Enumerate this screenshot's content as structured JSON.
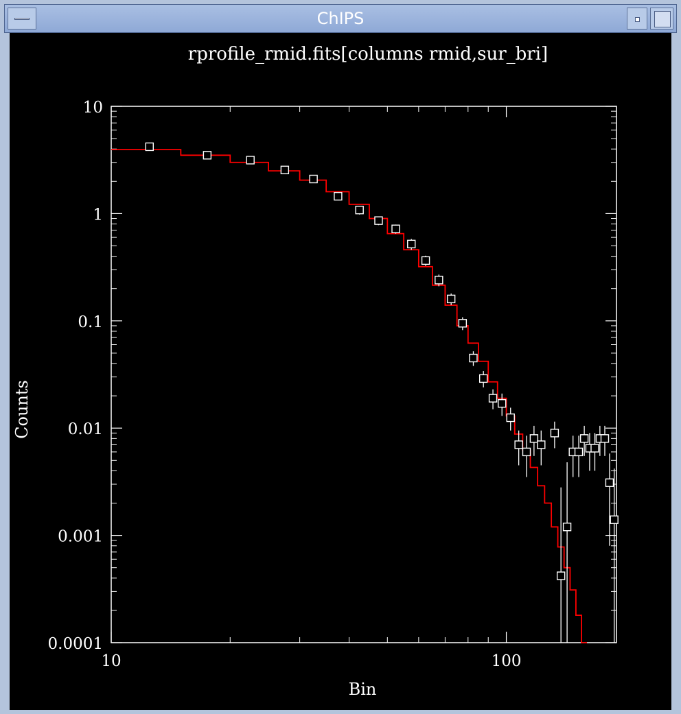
{
  "window": {
    "title": "ChIPS"
  },
  "chart_data": {
    "type": "scatter",
    "title": "rprofile_rmid.fits[columns rmid,sur_bri]",
    "xlabel": "Bin",
    "ylabel": "Counts",
    "xscale": "log",
    "yscale": "log",
    "xlim": [
      10,
      190
    ],
    "ylim": [
      0.0001,
      10
    ],
    "x_ticks": [
      10,
      100
    ],
    "x_tick_labels": [
      "10",
      "100"
    ],
    "y_ticks": [
      0.0001,
      0.001,
      0.01,
      0.1,
      1,
      10
    ],
    "y_tick_labels": [
      "0.0001",
      "0.001",
      "0.01",
      "0.1",
      "1",
      "10"
    ],
    "grid": false,
    "colors": {
      "background": "#000000",
      "data": "#ffffff",
      "model": "#ff0000"
    },
    "series": [
      {
        "style": "open-square markers with vertical error bars",
        "points": [
          {
            "x": 12.5,
            "y": 4.2,
            "lo": 3.9,
            "hi": 4.5
          },
          {
            "x": 17.5,
            "y": 3.5,
            "lo": 3.3,
            "hi": 3.7
          },
          {
            "x": 22.5,
            "y": 3.15,
            "lo": 2.95,
            "hi": 3.35
          },
          {
            "x": 27.5,
            "y": 2.55,
            "lo": 2.4,
            "hi": 2.7
          },
          {
            "x": 32.5,
            "y": 2.1,
            "lo": 1.95,
            "hi": 2.25
          },
          {
            "x": 37.5,
            "y": 1.45,
            "lo": 1.33,
            "hi": 1.57
          },
          {
            "x": 42.5,
            "y": 1.08,
            "lo": 0.98,
            "hi": 1.18
          },
          {
            "x": 47.5,
            "y": 0.86,
            "lo": 0.78,
            "hi": 0.94
          },
          {
            "x": 52.5,
            "y": 0.72,
            "lo": 0.65,
            "hi": 0.79
          },
          {
            "x": 57.5,
            "y": 0.52,
            "lo": 0.46,
            "hi": 0.58
          },
          {
            "x": 62.5,
            "y": 0.365,
            "lo": 0.325,
            "hi": 0.405
          },
          {
            "x": 67.5,
            "y": 0.24,
            "lo": 0.21,
            "hi": 0.27
          },
          {
            "x": 72.5,
            "y": 0.16,
            "lo": 0.14,
            "hi": 0.18
          },
          {
            "x": 77.5,
            "y": 0.095,
            "lo": 0.082,
            "hi": 0.108
          },
          {
            "x": 82.5,
            "y": 0.045,
            "lo": 0.038,
            "hi": 0.052
          },
          {
            "x": 87.5,
            "y": 0.029,
            "lo": 0.024,
            "hi": 0.034
          },
          {
            "x": 92.5,
            "y": 0.019,
            "lo": 0.015,
            "hi": 0.023
          },
          {
            "x": 97.5,
            "y": 0.017,
            "lo": 0.013,
            "hi": 0.021
          },
          {
            "x": 102.5,
            "y": 0.0125,
            "lo": 0.0095,
            "hi": 0.0155
          },
          {
            "x": 107.5,
            "y": 0.007,
            "lo": 0.0045,
            "hi": 0.0095
          },
          {
            "x": 112.5,
            "y": 0.006,
            "lo": 0.0035,
            "hi": 0.0085
          },
          {
            "x": 117.5,
            "y": 0.008,
            "lo": 0.0055,
            "hi": 0.0105
          },
          {
            "x": 122.5,
            "y": 0.007,
            "lo": 0.0045,
            "hi": 0.0095
          },
          {
            "x": 132.5,
            "y": 0.009,
            "lo": 0.0065,
            "hi": 0.0115
          },
          {
            "x": 137.5,
            "y": 0.00042,
            "lo": 5e-05,
            "hi": 0.0028
          },
          {
            "x": 142.5,
            "y": 0.0012,
            "lo": 5e-05,
            "hi": 0.0048
          },
          {
            "x": 147.5,
            "y": 0.006,
            "lo": 0.0035,
            "hi": 0.0085
          },
          {
            "x": 152.5,
            "y": 0.006,
            "lo": 0.0035,
            "hi": 0.0085
          },
          {
            "x": 157.5,
            "y": 0.008,
            "lo": 0.0055,
            "hi": 0.0105
          },
          {
            "x": 162.5,
            "y": 0.0065,
            "lo": 0.004,
            "hi": 0.009
          },
          {
            "x": 167.5,
            "y": 0.0065,
            "lo": 0.004,
            "hi": 0.009
          },
          {
            "x": 172.5,
            "y": 0.008,
            "lo": 0.0055,
            "hi": 0.0105
          },
          {
            "x": 177.5,
            "y": 0.008,
            "lo": 0.0055,
            "hi": 0.0105
          },
          {
            "x": 182.5,
            "y": 0.0031,
            "lo": 0.0008,
            "hi": 0.0058
          },
          {
            "x": 187.5,
            "y": 0.0014,
            "lo": 5e-05,
            "hi": 0.0042
          }
        ]
      },
      {
        "style": "step line",
        "steps": [
          {
            "x0": 10,
            "x1": 15,
            "y": 3.95
          },
          {
            "x0": 15,
            "x1": 20,
            "y": 3.5
          },
          {
            "x0": 20,
            "x1": 25,
            "y": 3.0
          },
          {
            "x0": 25,
            "x1": 30,
            "y": 2.5
          },
          {
            "x0": 30,
            "x1": 35,
            "y": 2.05
          },
          {
            "x0": 35,
            "x1": 40,
            "y": 1.6
          },
          {
            "x0": 40,
            "x1": 45,
            "y": 1.22
          },
          {
            "x0": 45,
            "x1": 50,
            "y": 0.9
          },
          {
            "x0": 50,
            "x1": 55,
            "y": 0.65
          },
          {
            "x0": 55,
            "x1": 60,
            "y": 0.46
          },
          {
            "x0": 60,
            "x1": 65,
            "y": 0.32
          },
          {
            "x0": 65,
            "x1": 70,
            "y": 0.215
          },
          {
            "x0": 70,
            "x1": 75,
            "y": 0.14
          },
          {
            "x0": 75,
            "x1": 80,
            "y": 0.09
          },
          {
            "x0": 80,
            "x1": 85,
            "y": 0.062
          },
          {
            "x0": 85,
            "x1": 90,
            "y": 0.042
          },
          {
            "x0": 90,
            "x1": 95,
            "y": 0.027
          },
          {
            "x0": 95,
            "x1": 100,
            "y": 0.019
          },
          {
            "x0": 100,
            "x1": 105,
            "y": 0.013
          },
          {
            "x0": 105,
            "x1": 110,
            "y": 0.0088
          },
          {
            "x0": 110,
            "x1": 115,
            "y": 0.0062
          },
          {
            "x0": 115,
            "x1": 120,
            "y": 0.0043
          },
          {
            "x0": 120,
            "x1": 125,
            "y": 0.0029
          },
          {
            "x0": 125,
            "x1": 130,
            "y": 0.002
          },
          {
            "x0": 130,
            "x1": 135,
            "y": 0.0012
          },
          {
            "x0": 135,
            "x1": 140,
            "y": 0.00078
          },
          {
            "x0": 140,
            "x1": 145,
            "y": 0.0005
          },
          {
            "x0": 145,
            "x1": 150,
            "y": 0.00031
          },
          {
            "x0": 150,
            "x1": 155,
            "y": 0.00018
          },
          {
            "x0": 155,
            "x1": 160,
            "y": 0.0001
          }
        ]
      }
    ]
  }
}
